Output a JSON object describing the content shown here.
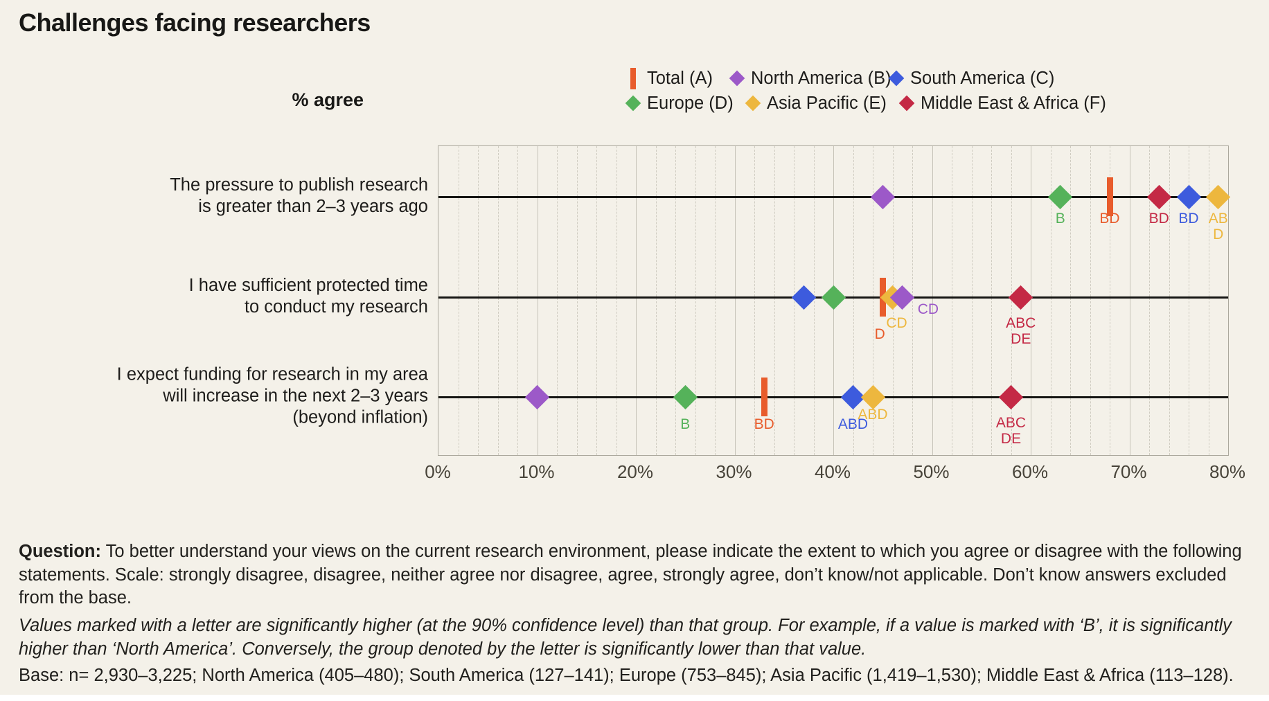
{
  "title": "Challenges facing researchers",
  "y_axis_label": "% agree",
  "colors": {
    "total": "#E85C2C",
    "north_america": "#9C59C8",
    "south_america": "#3D5BDD",
    "europe": "#55B25A",
    "asia_pacific": "#EDB73E",
    "middle_east_africa": "#C42945",
    "background": "#F4F1E9",
    "row_line": "#161614"
  },
  "legend": [
    {
      "series": "A",
      "label": "Total (A)",
      "color": "#E85C2C",
      "marker": "bar"
    },
    {
      "series": "B",
      "label": "North America (B)",
      "color": "#9C59C8",
      "marker": "diamond"
    },
    {
      "series": "C",
      "label": "South America (C)",
      "color": "#3D5BDD",
      "marker": "diamond"
    },
    {
      "series": "D",
      "label": "Europe (D)",
      "color": "#55B25A",
      "marker": "diamond"
    },
    {
      "series": "E",
      "label": "Asia Pacific (E)",
      "color": "#EDB73E",
      "marker": "diamond"
    },
    {
      "series": "F",
      "label": "Middle East & Africa (F)",
      "color": "#C42945",
      "marker": "diamond"
    }
  ],
  "chart_data": {
    "type": "scatter",
    "title": "Challenges facing researchers",
    "xlabel": "% agree",
    "xlim": [
      0,
      80
    ],
    "x_ticks": [
      "0%",
      "10%",
      "20%",
      "30%",
      "40%",
      "50%",
      "60%",
      "70%",
      "80%"
    ],
    "grid": {
      "minor_step_pct": 2,
      "major_step_pct": 10
    },
    "legend_position": "top-right",
    "series_names": {
      "A": "Total",
      "B": "North America",
      "C": "South America",
      "D": "Europe",
      "E": "Asia Pacific",
      "F": "Middle East & Africa"
    },
    "rows": [
      {
        "label_lines": [
          "The pressure to publish research",
          "is greater than 2–3 years ago"
        ],
        "points": [
          {
            "series": "B",
            "value": 45,
            "sig": null
          },
          {
            "series": "D",
            "value": 63,
            "sig": [
              "B"
            ],
            "sig_dy": 20
          },
          {
            "series": "A",
            "value": 68,
            "sig": [
              "BD"
            ],
            "sig_dy": 20
          },
          {
            "series": "F",
            "value": 73,
            "sig": [
              "BD"
            ],
            "sig_dy": 20
          },
          {
            "series": "C",
            "value": 76,
            "sig": [
              "BD"
            ],
            "sig_dy": 20
          },
          {
            "series": "E",
            "value": 79,
            "sig": [
              "AB",
              "D"
            ],
            "sig_dy": 20
          }
        ]
      },
      {
        "label_lines": [
          "I have sufficient protected time",
          "to conduct my research"
        ],
        "points": [
          {
            "series": "C",
            "value": 37,
            "sig": null
          },
          {
            "series": "D",
            "value": 40,
            "sig": null
          },
          {
            "series": "A",
            "value": 45,
            "sig": [
              "D"
            ],
            "sig_dy": 42,
            "sig_dx": -4
          },
          {
            "series": "E",
            "value": 46,
            "sig": [
              "CD"
            ],
            "sig_dy": 26,
            "sig_dx": 6
          },
          {
            "series": "B",
            "value": 47,
            "sig": [
              "CD"
            ],
            "sig_pos": "right",
            "sig_dy": 6,
            "sig_dx": 22
          },
          {
            "series": "F",
            "value": 59,
            "sig": [
              "ABC",
              "DE"
            ],
            "sig_dy": 26
          }
        ]
      },
      {
        "label_lines": [
          "I expect funding for research in my area",
          "will increase in the next 2–3 years",
          "(beyond inflation)"
        ],
        "points": [
          {
            "series": "B",
            "value": 10,
            "sig": null
          },
          {
            "series": "D",
            "value": 25,
            "sig": [
              "B"
            ],
            "sig_dy": 28
          },
          {
            "series": "A",
            "value": 33,
            "sig": [
              "BD"
            ],
            "sig_dy": 28
          },
          {
            "series": "C",
            "value": 42,
            "sig": [
              "ABD"
            ],
            "sig_dy": 28
          },
          {
            "series": "E",
            "value": 44,
            "sig": [
              "ABD"
            ],
            "sig_dy": 14
          },
          {
            "series": "F",
            "value": 58,
            "sig": [
              "ABC",
              "DE"
            ],
            "sig_dy": 26
          }
        ]
      }
    ]
  },
  "footer": {
    "question_label": "Question:",
    "question_text": " To better understand your views on the current research environment, please indicate the extent to which you agree or disagree with the following statements. Scale: strongly disagree, disagree, neither agree nor disagree, agree, strongly agree, don’t know/not applicable. Don’t know answers excluded from the base.",
    "significance_note": "Values marked with a letter are significantly higher (at the 90% confidence level) than that group. For example, if a value is marked with ‘B’, it is significantly higher than ‘North America’. Conversely, the group denoted by the letter is significantly lower than that value.",
    "base_note": "Base: n= 2,930–3,225; North America (405–480); South America (127–141); Europe (753–845); Asia Pacific (1,419–1,530); Middle East & Africa (113–128)."
  }
}
